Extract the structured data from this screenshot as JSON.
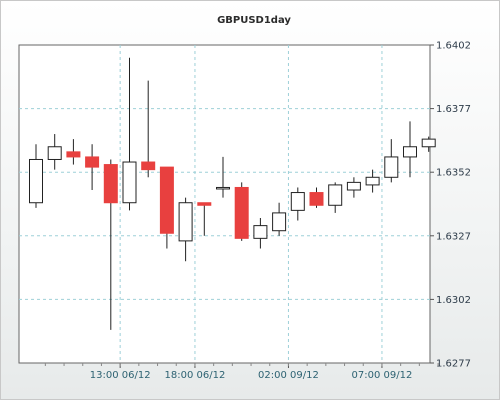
{
  "chart_data": {
    "type": "candlestick",
    "title": "GBPUSD1day",
    "y_axis": {
      "position": "right",
      "ylim": [
        1.6277,
        1.6402
      ],
      "ticks": [
        "1.6402",
        "1.6377",
        "1.6352",
        "1.6327",
        "1.6302",
        "1.6277"
      ],
      "grid": true
    },
    "x_axis": {
      "ticks": [
        {
          "index": 4.5,
          "label": "13:00 06/12"
        },
        {
          "index": 8.5,
          "label": "18:00 06/12"
        },
        {
          "index": 13.5,
          "label": "02:00 09/12"
        },
        {
          "index": 18.5,
          "label": "07:00 09/12"
        }
      ],
      "grid": true
    },
    "colors": {
      "up": "#ffffff",
      "down": "#e8403f",
      "wick": "#222222",
      "grid": "#9ed0d8",
      "axis": "#555555"
    },
    "candles": [
      {
        "o": 1.634,
        "h": 1.6363,
        "l": 1.6338,
        "c": 1.6357
      },
      {
        "o": 1.6357,
        "h": 1.6367,
        "l": 1.6353,
        "c": 1.6362
      },
      {
        "o": 1.636,
        "h": 1.6365,
        "l": 1.6355,
        "c": 1.6358
      },
      {
        "o": 1.6358,
        "h": 1.6363,
        "l": 1.6345,
        "c": 1.6354
      },
      {
        "o": 1.6355,
        "h": 1.6357,
        "l": 1.629,
        "c": 1.634
      },
      {
        "o": 1.634,
        "h": 1.6397,
        "l": 1.6337,
        "c": 1.6356
      },
      {
        "o": 1.6356,
        "h": 1.6388,
        "l": 1.635,
        "c": 1.6353
      },
      {
        "o": 1.6354,
        "h": 1.6354,
        "l": 1.6322,
        "c": 1.6328
      },
      {
        "o": 1.6325,
        "h": 1.6342,
        "l": 1.6317,
        "c": 1.634
      },
      {
        "o": 1.634,
        "h": 1.634,
        "l": 1.6327,
        "c": 1.6339
      },
      {
        "o": 1.6346,
        "h": 1.6358,
        "l": 1.6342,
        "c": 1.6346
      },
      {
        "o": 1.6346,
        "h": 1.6348,
        "l": 1.6325,
        "c": 1.6326
      },
      {
        "o": 1.6326,
        "h": 1.6334,
        "l": 1.6322,
        "c": 1.6331
      },
      {
        "o": 1.6329,
        "h": 1.634,
        "l": 1.6327,
        "c": 1.6336
      },
      {
        "o": 1.6337,
        "h": 1.6346,
        "l": 1.6333,
        "c": 1.6344
      },
      {
        "o": 1.6344,
        "h": 1.6346,
        "l": 1.6338,
        "c": 1.6339
      },
      {
        "o": 1.6339,
        "h": 1.6348,
        "l": 1.6336,
        "c": 1.6347
      },
      {
        "o": 1.6345,
        "h": 1.635,
        "l": 1.6342,
        "c": 1.6348
      },
      {
        "o": 1.6347,
        "h": 1.6353,
        "l": 1.6344,
        "c": 1.635
      },
      {
        "o": 1.635,
        "h": 1.6365,
        "l": 1.6348,
        "c": 1.6358
      },
      {
        "o": 1.6358,
        "h": 1.6372,
        "l": 1.635,
        "c": 1.6362
      },
      {
        "o": 1.6362,
        "h": 1.6366,
        "l": 1.636,
        "c": 1.6365
      }
    ]
  }
}
